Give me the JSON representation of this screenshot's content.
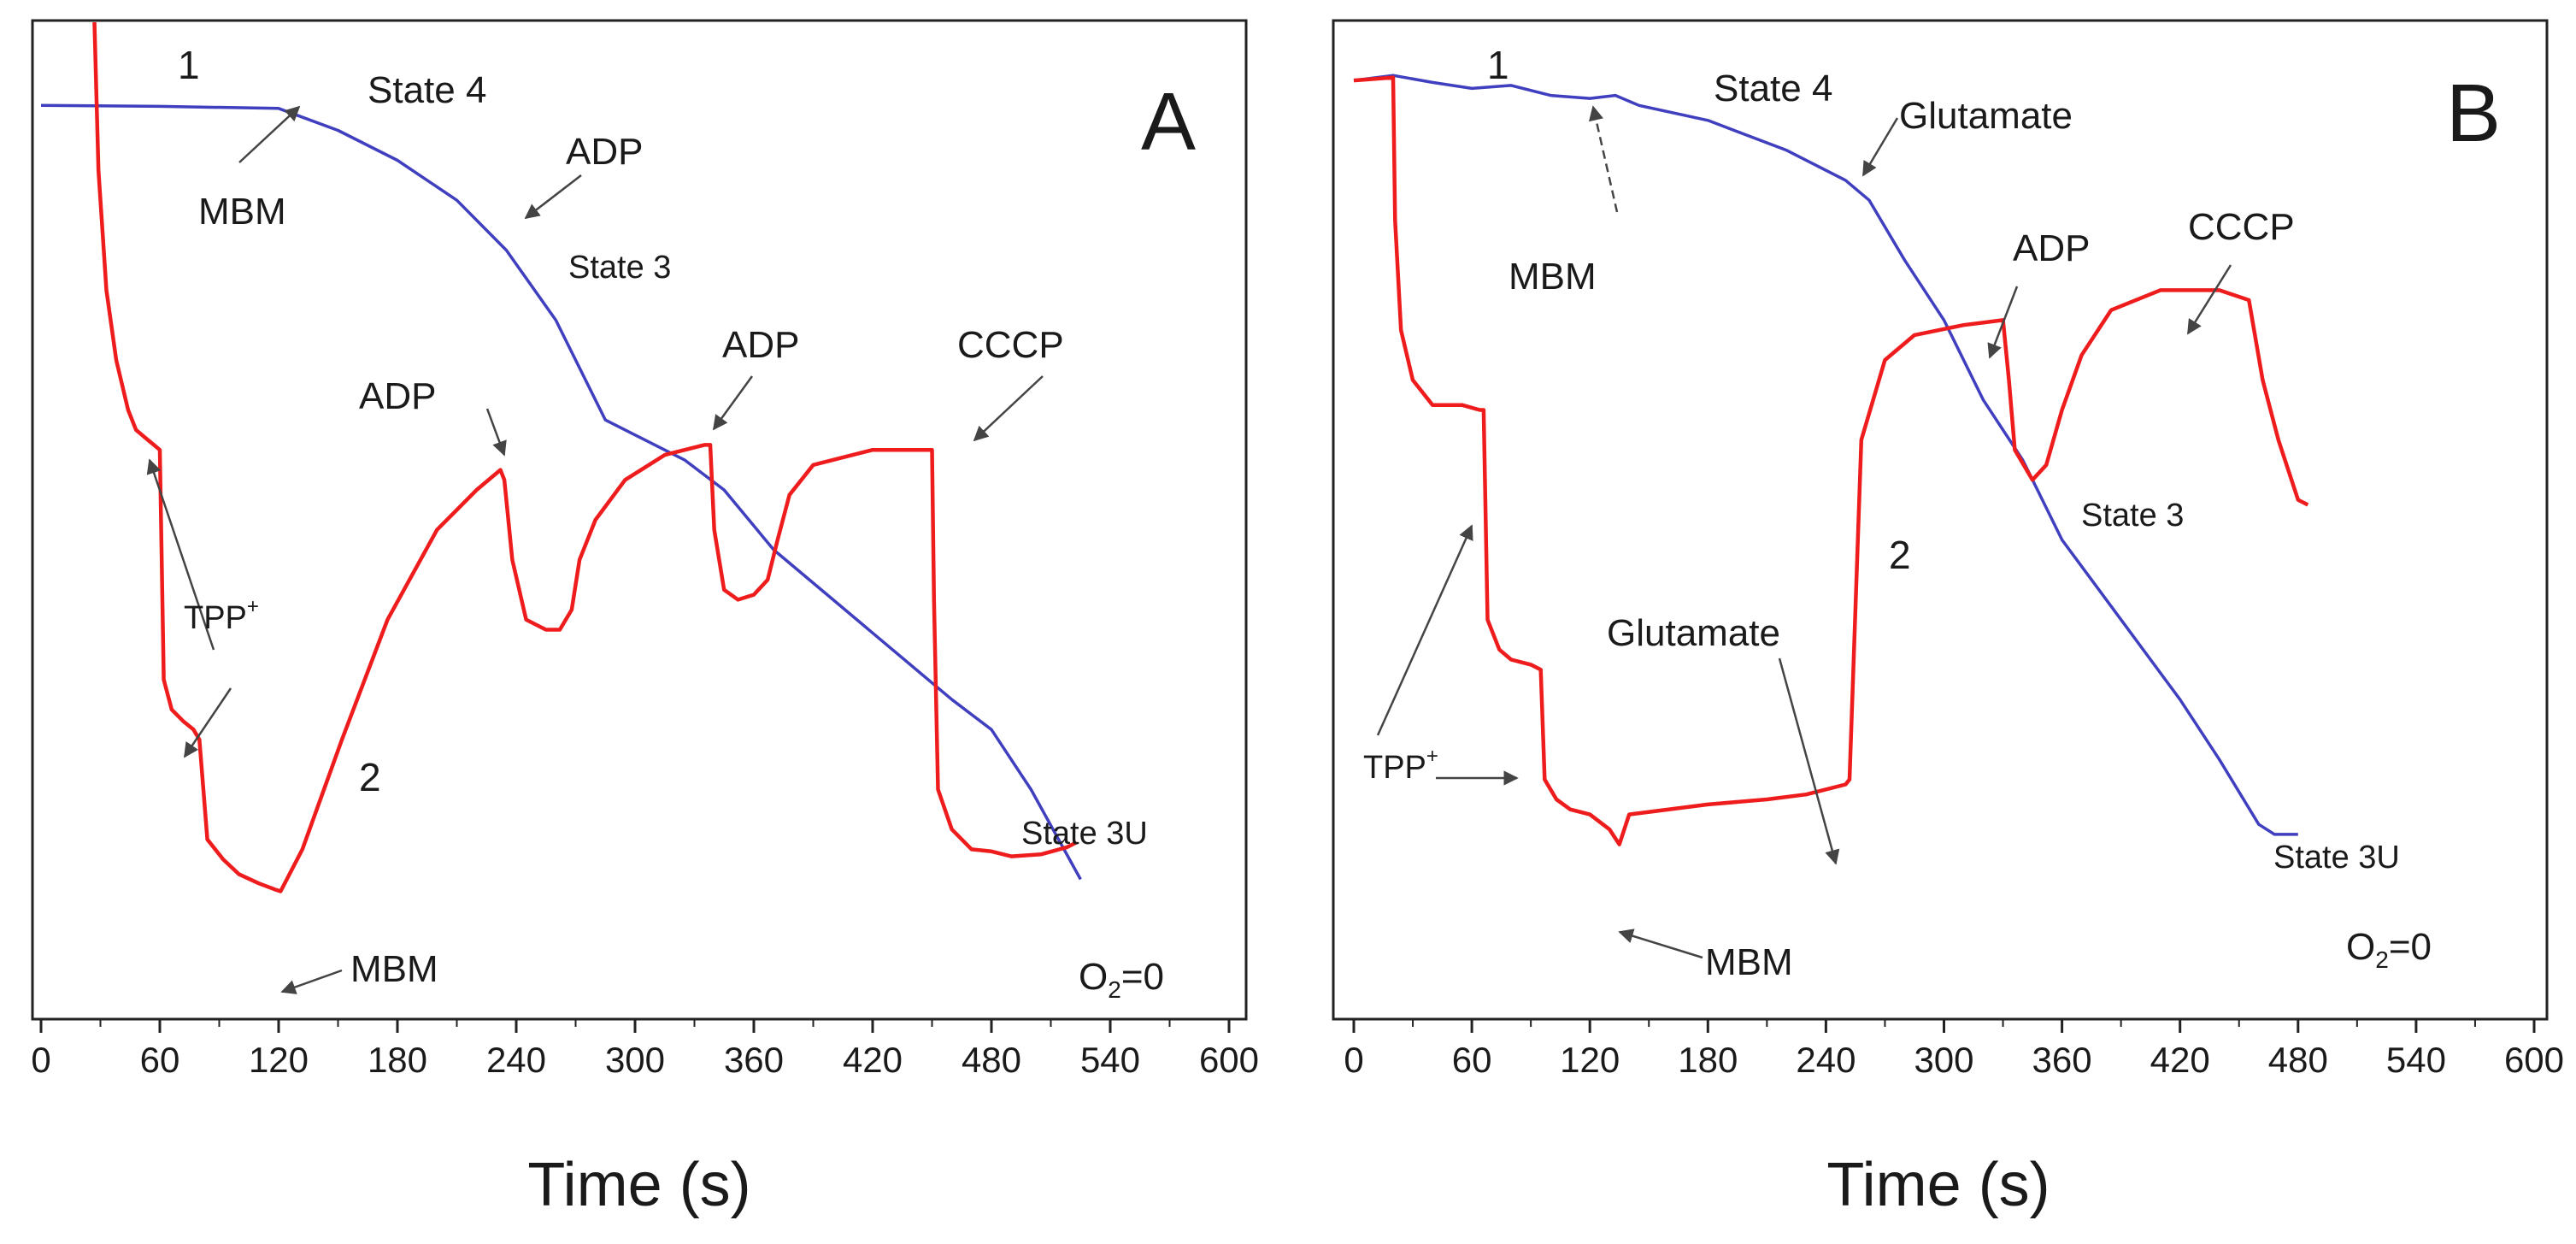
{
  "colors": {
    "oxygen_trace": "#3f3fbf",
    "tpp_trace": "#ee1c1c",
    "axis": "#222222",
    "text": "#1a1a1a",
    "arrow": "#444444",
    "background": "#ffffff"
  },
  "chart_data": [
    {
      "type": "line",
      "panel": "A",
      "xlabel": "Time (s)",
      "xlim": [
        0,
        600
      ],
      "xticks": [
        "0",
        "60",
        "120",
        "180",
        "240",
        "300",
        "360",
        "420",
        "480",
        "540",
        "600"
      ],
      "ylim": [
        0,
        100
      ],
      "yticks_visible": false,
      "series": [
        {
          "name": "1",
          "color": "#3f3fbf",
          "points": [
            [
              0,
              91.5
            ],
            [
              60,
              91.4
            ],
            [
              120,
              91.2
            ],
            [
              150,
              89
            ],
            [
              180,
              86
            ],
            [
              210,
              82
            ],
            [
              235,
              77
            ],
            [
              260,
              70
            ],
            [
              285,
              60
            ],
            [
              305,
              58
            ],
            [
              325,
              56
            ],
            [
              345,
              53
            ],
            [
              370,
              47
            ],
            [
              400,
              42
            ],
            [
              430,
              37
            ],
            [
              460,
              32
            ],
            [
              480,
              29
            ],
            [
              500,
              23
            ],
            [
              525,
              14
            ]
          ]
        },
        {
          "name": "2",
          "color": "#ee1c1c",
          "points": [
            [
              27,
              101
            ],
            [
              29,
              85
            ],
            [
              33,
              73
            ],
            [
              38,
              66
            ],
            [
              44,
              61
            ],
            [
              48,
              59
            ],
            [
              54,
              58
            ],
            [
              57,
              57.5
            ],
            [
              60,
              57
            ],
            [
              62,
              34
            ],
            [
              66,
              31
            ],
            [
              72,
              29.8
            ],
            [
              77,
              29
            ],
            [
              80,
              28
            ],
            [
              84,
              18
            ],
            [
              92,
              16
            ],
            [
              100,
              14.5
            ],
            [
              110,
              13.6
            ],
            [
              118,
              13
            ],
            [
              121,
              12.8
            ],
            [
              132,
              17
            ],
            [
              152,
              28
            ],
            [
              175,
              40
            ],
            [
              200,
              49
            ],
            [
              220,
              53
            ],
            [
              232,
              55
            ],
            [
              234,
              54
            ],
            [
              238,
              46
            ],
            [
              245,
              40
            ],
            [
              255,
              39
            ],
            [
              262,
              39
            ],
            [
              268,
              41
            ],
            [
              272,
              46
            ],
            [
              280,
              50
            ],
            [
              295,
              54
            ],
            [
              315,
              56.5
            ],
            [
              335,
              57.5
            ],
            [
              338,
              57.5
            ],
            [
              340,
              49
            ],
            [
              345,
              43
            ],
            [
              352,
              42
            ],
            [
              360,
              42.5
            ],
            [
              367,
              44
            ],
            [
              372,
              48
            ],
            [
              378,
              52.5
            ],
            [
              390,
              55.5
            ],
            [
              420,
              57
            ],
            [
              444,
              57
            ],
            [
              450,
              57
            ],
            [
              451,
              42
            ],
            [
              453,
              23
            ],
            [
              460,
              19
            ],
            [
              470,
              17
            ],
            [
              480,
              16.8
            ],
            [
              490,
              16.3
            ],
            [
              505,
              16.5
            ],
            [
              518,
              17.2
            ],
            [
              523,
              17.7
            ]
          ]
        }
      ],
      "labels": {
        "panel": "A",
        "trace1": "1",
        "trace2": "2",
        "state4": "State 4",
        "mbm_o2": "MBM",
        "adp_o2": "ADP",
        "state3": "State 3",
        "adp_1": "ADP",
        "adp_2": "ADP",
        "cccp": "CCCP",
        "tpp": "TPP",
        "tpp_sup": "+",
        "mbm_tpp": "MBM",
        "state3u": "State 3U",
        "o2_zero_pre": "O",
        "o2_zero_sub": "2",
        "o2_zero_post": "=0"
      }
    },
    {
      "type": "line",
      "panel": "B",
      "xlabel": "Time (s)",
      "xlim": [
        0,
        600
      ],
      "xticks": [
        "0",
        "60",
        "120",
        "180",
        "240",
        "300",
        "360",
        "420",
        "480",
        "540",
        "600"
      ],
      "ylim": [
        0,
        100
      ],
      "yticks_visible": false,
      "series": [
        {
          "name": "1",
          "color": "#3f3fbf",
          "points": [
            [
              0,
              94
            ],
            [
              20,
              94.5
            ],
            [
              40,
              93.8
            ],
            [
              60,
              93.2
            ],
            [
              80,
              93.5
            ],
            [
              100,
              92.5
            ],
            [
              120,
              92.2
            ],
            [
              133,
              92.5
            ],
            [
              145,
              91.5
            ],
            [
              180,
              90
            ],
            [
              220,
              87
            ],
            [
              250,
              84
            ],
            [
              262,
              82
            ],
            [
              280,
              76
            ],
            [
              300,
              70
            ],
            [
              320,
              62
            ],
            [
              340,
              56
            ],
            [
              360,
              48
            ],
            [
              390,
              40
            ],
            [
              420,
              32
            ],
            [
              440,
              26
            ],
            [
              460,
              19.5
            ],
            [
              468,
              18.5
            ],
            [
              480,
              18.5
            ]
          ]
        },
        {
          "name": "2",
          "color": "#ee1c1c",
          "points": [
            [
              0,
              94
            ],
            [
              20,
              94.3
            ],
            [
              21,
              80
            ],
            [
              24,
              69
            ],
            [
              30,
              64
            ],
            [
              40,
              61.5
            ],
            [
              55,
              61.5
            ],
            [
              64,
              61
            ],
            [
              66,
              61
            ],
            [
              68,
              40
            ],
            [
              74,
              37
            ],
            [
              80,
              36
            ],
            [
              90,
              35.5
            ],
            [
              95,
              35
            ],
            [
              97,
              24
            ],
            [
              103,
              22
            ],
            [
              110,
              21
            ],
            [
              120,
              20.5
            ],
            [
              130,
              19
            ],
            [
              135,
              17.5
            ],
            [
              140,
              20.5
            ],
            [
              180,
              21.5
            ],
            [
              210,
              22
            ],
            [
              230,
              22.5
            ],
            [
              250,
              23.5
            ],
            [
              252,
              24
            ],
            [
              258,
              58
            ],
            [
              270,
              66
            ],
            [
              285,
              68.5
            ],
            [
              310,
              69.5
            ],
            [
              330,
              70
            ],
            [
              333,
              64
            ],
            [
              336,
              57
            ],
            [
              345,
              54
            ],
            [
              352,
              55.5
            ],
            [
              360,
              61
            ],
            [
              370,
              66.5
            ],
            [
              385,
              71
            ],
            [
              410,
              73
            ],
            [
              440,
              73
            ],
            [
              455,
              72
            ],
            [
              462,
              64
            ],
            [
              470,
              58
            ],
            [
              480,
              52
            ],
            [
              485,
              51.5
            ]
          ]
        }
      ],
      "labels": {
        "panel": "B",
        "trace1": "1",
        "trace2": "2",
        "state4": "State 4",
        "glutamate_o2": "Glutamate",
        "mbm_o2": "MBM",
        "adp": "ADP",
        "cccp": "CCCP",
        "state3": "State 3",
        "glutamate_tpp": "Glutamate",
        "tpp": "TPP",
        "tpp_sup": "+",
        "mbm_tpp": "MBM",
        "state3u": "State 3U",
        "o2_zero_pre": "O",
        "o2_zero_sub": "2",
        "o2_zero_post": "=0"
      }
    }
  ]
}
